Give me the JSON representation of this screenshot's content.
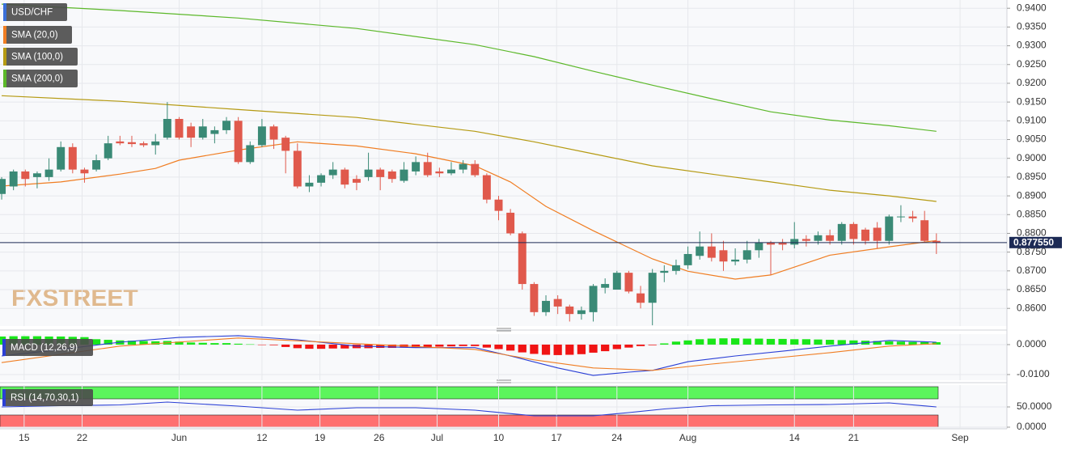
{
  "chart_data": [
    {
      "type": "candlestick",
      "symbol": "USD/CHF",
      "watermark": "FXSTREET",
      "up_color": "#3a8a76",
      "down_color": "#e0594c",
      "xlim": [
        -0.14,
        84.96
      ],
      "ylim": [
        0.8553,
        0.9422
      ],
      "xticks": [
        {
          "value": 1.9,
          "label": "15"
        },
        {
          "value": 6.8,
          "label": "22"
        },
        {
          "value": 15,
          "label": "Jun"
        },
        {
          "value": 22,
          "label": "12"
        },
        {
          "value": 26.9,
          "label": "19"
        },
        {
          "value": 31.9,
          "label": "26"
        },
        {
          "value": 36.8,
          "label": "Jul"
        },
        {
          "value": 42,
          "label": "10"
        },
        {
          "value": 46.9,
          "label": "17"
        },
        {
          "value": 52,
          "label": "24"
        },
        {
          "value": 58,
          "label": "Aug"
        },
        {
          "value": 67,
          "label": "14"
        },
        {
          "value": 72,
          "label": "21"
        },
        {
          "value": 81,
          "label": "Sep"
        }
      ],
      "yticks": [
        {
          "value": 0.86,
          "label": "0.8600"
        },
        {
          "value": 0.865,
          "label": "0.8650"
        },
        {
          "value": 0.87,
          "label": "0.8700"
        },
        {
          "value": 0.875,
          "label": "0.8750"
        },
        {
          "value": 0.88,
          "label": "0.8800"
        },
        {
          "value": 0.885,
          "label": "0.8850"
        },
        {
          "value": 0.89,
          "label": "0.8900"
        },
        {
          "value": 0.895,
          "label": "0.8950"
        },
        {
          "value": 0.9,
          "label": "0.9000"
        },
        {
          "value": 0.905,
          "label": "0.9050"
        },
        {
          "value": 0.91,
          "label": "0.9100"
        },
        {
          "value": 0.915,
          "label": "0.9150"
        },
        {
          "value": 0.92,
          "label": "0.9200"
        },
        {
          "value": 0.925,
          "label": "0.9250"
        },
        {
          "value": 0.93,
          "label": "0.9300"
        },
        {
          "value": 0.935,
          "label": "0.9350"
        },
        {
          "value": 0.94,
          "label": "0.9400"
        }
      ],
      "grid": true,
      "last_price": {
        "value": 0.87755,
        "label": "0.877550",
        "color": "#1c2a55"
      },
      "open": [
        0.8905,
        0.8925,
        0.8965,
        0.895,
        0.895,
        0.897,
        0.903,
        0.897,
        0.897,
        0.9,
        0.9045,
        0.9043,
        0.904,
        0.9035,
        0.9055,
        0.9105,
        0.9085,
        0.9055,
        0.9065,
        0.9075,
        0.91,
        0.899,
        0.9035,
        0.9085,
        0.9055,
        0.902,
        0.8925,
        0.8935,
        0.8955,
        0.897,
        0.8945,
        0.895,
        0.897,
        0.8965,
        0.894,
        0.8965,
        0.899,
        0.8965,
        0.896,
        0.897,
        0.8985,
        0.8955,
        0.889,
        0.8855,
        0.88,
        0.8665,
        0.859,
        0.8625,
        0.8605,
        0.8585,
        0.859,
        0.8655,
        0.865,
        0.8695,
        0.864,
        0.8615,
        0.8695,
        0.87,
        0.8715,
        0.874,
        0.8765,
        0.8755,
        0.8725,
        0.873,
        0.8755,
        0.8775,
        0.8775,
        0.877,
        0.8785,
        0.878,
        0.8795,
        0.878,
        0.8825,
        0.881,
        0.8815,
        0.878,
        0.8845,
        0.8845,
        0.8835,
        0.878
      ],
      "high": [
        0.895,
        0.897,
        0.897,
        0.8965,
        0.9,
        0.9045,
        0.904,
        0.8975,
        0.901,
        0.906,
        0.906,
        0.906,
        0.9045,
        0.9065,
        0.915,
        0.911,
        0.9095,
        0.9105,
        0.9085,
        0.911,
        0.911,
        0.9045,
        0.9105,
        0.909,
        0.906,
        0.904,
        0.8955,
        0.896,
        0.899,
        0.8975,
        0.8955,
        0.9015,
        0.8975,
        0.897,
        0.899,
        0.9005,
        0.9015,
        0.8975,
        0.899,
        0.8995,
        0.8995,
        0.896,
        0.89,
        0.8865,
        0.8805,
        0.867,
        0.8635,
        0.8635,
        0.861,
        0.8605,
        0.8665,
        0.868,
        0.87,
        0.87,
        0.866,
        0.8705,
        0.8715,
        0.873,
        0.8765,
        0.8805,
        0.88,
        0.878,
        0.876,
        0.878,
        0.8785,
        0.878,
        0.8785,
        0.883,
        0.8795,
        0.8805,
        0.881,
        0.883,
        0.883,
        0.8815,
        0.883,
        0.885,
        0.8875,
        0.886,
        0.886,
        0.88
      ],
      "low": [
        0.889,
        0.8915,
        0.8925,
        0.892,
        0.894,
        0.8965,
        0.896,
        0.8935,
        0.8965,
        0.8995,
        0.9035,
        0.903,
        0.903,
        0.901,
        0.905,
        0.905,
        0.903,
        0.905,
        0.904,
        0.9065,
        0.8985,
        0.8985,
        0.903,
        0.9025,
        0.896,
        0.892,
        0.891,
        0.8925,
        0.8945,
        0.892,
        0.8915,
        0.894,
        0.8915,
        0.8935,
        0.8935,
        0.8955,
        0.895,
        0.895,
        0.8955,
        0.896,
        0.895,
        0.888,
        0.8835,
        0.8795,
        0.865,
        0.858,
        0.858,
        0.8585,
        0.8565,
        0.857,
        0.8565,
        0.864,
        0.865,
        0.864,
        0.86,
        0.8555,
        0.867,
        0.869,
        0.8705,
        0.873,
        0.8725,
        0.87,
        0.8715,
        0.872,
        0.8735,
        0.869,
        0.8755,
        0.876,
        0.8765,
        0.877,
        0.877,
        0.877,
        0.877,
        0.877,
        0.876,
        0.877,
        0.883,
        0.883,
        0.8775,
        0.8745
      ],
      "close": [
        0.8945,
        0.8965,
        0.8945,
        0.896,
        0.897,
        0.903,
        0.897,
        0.896,
        0.8995,
        0.904,
        0.904,
        0.9038,
        0.9035,
        0.9045,
        0.9105,
        0.9055,
        0.9055,
        0.9085,
        0.9075,
        0.91,
        0.899,
        0.9035,
        0.9085,
        0.905,
        0.902,
        0.8925,
        0.8935,
        0.8955,
        0.897,
        0.893,
        0.8935,
        0.897,
        0.895,
        0.8945,
        0.897,
        0.899,
        0.8955,
        0.896,
        0.897,
        0.8985,
        0.8955,
        0.889,
        0.886,
        0.88,
        0.8665,
        0.859,
        0.862,
        0.8605,
        0.8585,
        0.8595,
        0.866,
        0.8665,
        0.8695,
        0.8645,
        0.8615,
        0.8695,
        0.87,
        0.8715,
        0.8745,
        0.8765,
        0.8735,
        0.8725,
        0.873,
        0.8755,
        0.8775,
        0.877,
        0.877,
        0.8785,
        0.878,
        0.8795,
        0.878,
        0.8825,
        0.8785,
        0.878,
        0.878,
        0.8845,
        0.8845,
        0.884,
        0.878,
        0.87755
      ],
      "series": [
        {
          "name": "SMA (20,0)",
          "color": "#f07d22",
          "x": [
            0,
            5,
            10,
            13,
            15,
            20,
            25,
            30,
            35,
            40,
            43,
            46,
            50,
            55,
            58,
            62,
            65,
            70,
            75,
            79
          ],
          "values": [
            0.8926,
            0.8937,
            0.8958,
            0.8973,
            0.8995,
            0.9022,
            0.9044,
            0.9033,
            0.9012,
            0.898,
            0.8937,
            0.8872,
            0.8807,
            0.8732,
            0.8699,
            0.8678,
            0.8689,
            0.8742,
            0.8764,
            0.8781
          ]
        },
        {
          "name": "SMA (100,0)",
          "color": "#b59a12",
          "x": [
            0,
            10,
            20,
            30,
            40,
            45,
            50,
            55,
            60,
            65,
            70,
            75,
            79
          ],
          "values": [
            0.9167,
            0.9152,
            0.913,
            0.9109,
            0.9072,
            0.9044,
            0.9012,
            0.898,
            0.8958,
            0.8937,
            0.8915,
            0.89,
            0.8885
          ]
        },
        {
          "name": "SMA (200,0)",
          "color": "#5cb82a",
          "x": [
            0,
            10,
            20,
            30,
            40,
            45,
            50,
            55,
            60,
            65,
            70,
            75,
            79
          ],
          "values": [
            0.9411,
            0.9394,
            0.9374,
            0.9346,
            0.9303,
            0.9271,
            0.9232,
            0.9195,
            0.9159,
            0.9124,
            0.9102,
            0.9087,
            0.9072
          ]
        }
      ]
    },
    {
      "type": "macd",
      "label": "MACD (12,26,9)",
      "ylim": [
        -0.0119,
        0.0035
      ],
      "yticks": [
        {
          "value": -0.01,
          "label": "-0.0100"
        },
        {
          "value": 0,
          "label": "0.0000"
        }
      ],
      "up_color": "#19e619",
      "down_color": "#f01414",
      "histogram": [
        0.0027,
        0.0028,
        0.0028,
        0.0028,
        0.0027,
        0.0027,
        0.0026,
        0.0025,
        0.0018,
        0.0016,
        0.0014,
        0.0013,
        0.0012,
        0.0011,
        0.0012,
        0.001,
        0.0007,
        0.0006,
        0.0005,
        0.0005,
        0.0003,
        0.0001,
        -0.0001,
        -0.0002,
        -0.0008,
        -0.0012,
        -0.0014,
        -0.0014,
        -0.0013,
        -0.0013,
        -0.0012,
        -0.0012,
        -0.0011,
        -0.0011,
        -0.001,
        -0.001,
        -0.0009,
        -0.0007,
        -0.0006,
        -0.0005,
        -0.0005,
        -0.001,
        -0.0015,
        -0.002,
        -0.0026,
        -0.0031,
        -0.0034,
        -0.0035,
        -0.0034,
        -0.0032,
        -0.0027,
        -0.0022,
        -0.0015,
        -0.001,
        -0.0005,
        -0.0002,
        0.0004,
        0.001,
        0.0014,
        0.0018,
        0.002,
        0.0021,
        0.0021,
        0.002,
        0.002,
        0.0019,
        0.0019,
        0.0018,
        0.0018,
        0.0017,
        0.0016,
        0.0015,
        0.0014,
        0.0013,
        0.0012,
        0.0011,
        0.001,
        0.0009,
        0.0009,
        0.0008
      ],
      "series": [
        {
          "color": "#2a3fd6",
          "x": [
            0,
            5,
            10,
            15,
            20,
            25,
            30,
            35,
            40,
            43,
            47,
            50,
            53,
            55,
            58,
            62,
            66,
            70,
            75,
            79
          ],
          "values": [
            -0.0038,
            -0.0016,
            0.0008,
            0.0024,
            0.003,
            0.0016,
            -0.0005,
            -0.001,
            -0.001,
            -0.0038,
            -0.0078,
            -0.0103,
            -0.0092,
            -0.0086,
            -0.0057,
            -0.0038,
            -0.0022,
            -0.0005,
            0.0014,
            0.0008
          ]
        },
        {
          "color": "#f07d22",
          "x": [
            0,
            10,
            20,
            30,
            40,
            45,
            50,
            55,
            60,
            65,
            70,
            75,
            79
          ],
          "values": [
            -0.006,
            -0.0005,
            0.0022,
            0.0003,
            -0.0016,
            -0.0051,
            -0.0078,
            -0.0086,
            -0.0065,
            -0.0046,
            -0.0027,
            -0.0005,
            0.0003
          ]
        }
      ]
    },
    {
      "type": "rsi",
      "label": "RSI (14,70,30,1)",
      "ylim": [
        -4,
        104
      ],
      "yticks": [
        {
          "value": 0,
          "label": "0.0000"
        },
        {
          "value": 50,
          "label": "50.0000"
        }
      ],
      "zones": [
        {
          "from": 70,
          "to": 100,
          "color": "#5cf55c"
        },
        {
          "from": 0,
          "to": 30,
          "color": "#ff7070"
        }
      ],
      "series": [
        {
          "color": "#2a3fd6",
          "x": [
            0,
            5,
            10,
            14,
            20,
            25,
            30,
            35,
            40,
            45,
            50,
            53,
            56,
            60,
            65,
            70,
            75,
            79
          ],
          "values": [
            50,
            53,
            55,
            62,
            52,
            42,
            48,
            48,
            42,
            28,
            28,
            36,
            45,
            53,
            55,
            56,
            60,
            50
          ]
        }
      ]
    }
  ]
}
